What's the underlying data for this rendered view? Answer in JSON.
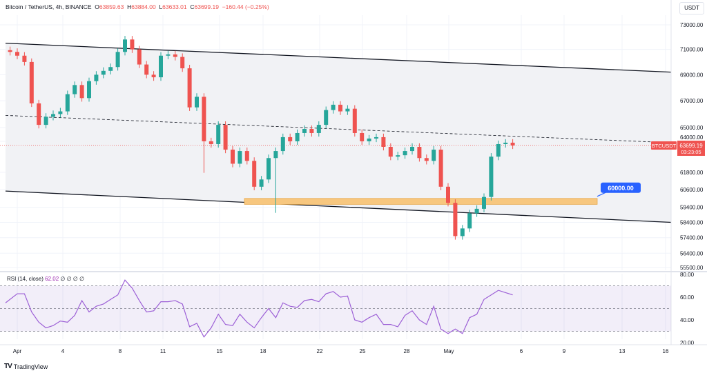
{
  "header": {
    "symbol": "Bitcoin / TetherUS, 4h, BINANCE",
    "open_label": "O",
    "open": "63859.63",
    "high_label": "H",
    "high": "63884.00",
    "low_label": "L",
    "low": "63633.01",
    "close_label": "C",
    "close": "63699.19",
    "change": "−160.44 (−0.25%)"
  },
  "currency_button": "USDT",
  "colors": {
    "up": "#26a69a",
    "down": "#ef5350",
    "rsi": "#9c5fd6",
    "zone": "#f7c77f",
    "callout": "#2962ff",
    "channel": "#f1f2f5"
  },
  "price_axis": {
    "scale": "log",
    "ticks": [
      "73000.00",
      "71000.00",
      "69000.00",
      "67000.00",
      "65000.00",
      "64000.00",
      "61800.00",
      "60600.00",
      "59400.00",
      "58400.00",
      "57400.00",
      "56400.00",
      "55500.00"
    ]
  },
  "last_price": {
    "symbol": "BTCUSDT",
    "price": "63699.19",
    "countdown": "03:23:05"
  },
  "annotations": {
    "support_zone": "59600-60000",
    "callout_label": "60000.00"
  },
  "time_axis": {
    "ticks": [
      "Apr",
      "4",
      "8",
      "11",
      "15",
      "18",
      "22",
      "25",
      "28",
      "May",
      "6",
      "9",
      "13",
      "16"
    ]
  },
  "chart_data": {
    "type": "candlestick",
    "interval": "12h samples of 4h chart",
    "closes": [
      [
        "Mar 31 12:00",
        70800
      ],
      [
        "Apr 1 00:00",
        70500
      ],
      [
        "Apr 1 12:00",
        70000
      ],
      [
        "Apr 2 00:00",
        66800
      ],
      [
        "Apr 2 12:00",
        65200
      ],
      [
        "Apr 3 00:00",
        65800
      ],
      [
        "Apr 3 12:00",
        66000
      ],
      [
        "Apr 4 00:00",
        66200
      ],
      [
        "Apr 4 12:00",
        67500
      ],
      [
        "Apr 5 00:00",
        68200
      ],
      [
        "Apr 5 12:00",
        67200
      ],
      [
        "Apr 6 00:00",
        68500
      ],
      [
        "Apr 6 12:00",
        69000
      ],
      [
        "Apr 7 00:00",
        69300
      ],
      [
        "Apr 7 12:00",
        69600
      ],
      [
        "Apr 8 00:00",
        70800
      ],
      [
        "Apr 8 12:00",
        71800
      ],
      [
        "Apr 9 00:00",
        71000
      ],
      [
        "Apr 9 12:00",
        69800
      ],
      [
        "Apr 10 00:00",
        69000
      ],
      [
        "Apr 10 12:00",
        68800
      ],
      [
        "Apr 11 00:00",
        70500
      ],
      [
        "Apr 11 12:00",
        70600
      ],
      [
        "Apr 12 00:00",
        70400
      ],
      [
        "Apr 12 12:00",
        69500
      ],
      [
        "Apr 13 00:00",
        66500
      ],
      [
        "Apr 13 12:00",
        67300
      ],
      [
        "Apr 14 00:00",
        64000
      ],
      [
        "Apr 14 12:00",
        63800
      ],
      [
        "Apr 15 00:00",
        65200
      ],
      [
        "Apr 15 12:00",
        63400
      ],
      [
        "Apr 16 00:00",
        62400
      ],
      [
        "Apr 16 12:00",
        63300
      ],
      [
        "Apr 17 00:00",
        62600
      ],
      [
        "Apr 17 12:00",
        60800
      ],
      [
        "Apr 18 00:00",
        61300
      ],
      [
        "Apr 18 12:00",
        62800
      ],
      [
        "Apr 19 00:00",
        63300
      ],
      [
        "Apr 19 12:00",
        64300
      ],
      [
        "Apr 20 00:00",
        64000
      ],
      [
        "Apr 20 12:00",
        64600
      ],
      [
        "Apr 21 00:00",
        64900
      ],
      [
        "Apr 21 12:00",
        64600
      ],
      [
        "Apr 22 00:00",
        65200
      ],
      [
        "Apr 22 12:00",
        66300
      ],
      [
        "Apr 23 00:00",
        66700
      ],
      [
        "Apr 23 12:00",
        66200
      ],
      [
        "Apr 24 00:00",
        66400
      ],
      [
        "Apr 24 12:00",
        64600
      ],
      [
        "Apr 25 00:00",
        64000
      ],
      [
        "Apr 25 12:00",
        64200
      ],
      [
        "Apr 26 00:00",
        64300
      ],
      [
        "Apr 26 12:00",
        63600
      ],
      [
        "Apr 27 00:00",
        62900
      ],
      [
        "Apr 27 12:00",
        63000
      ],
      [
        "Apr 28 00:00",
        63300
      ],
      [
        "Apr 28 12:00",
        63600
      ],
      [
        "Apr 29 00:00",
        62800
      ],
      [
        "Apr 29 12:00",
        62600
      ],
      [
        "Apr 30 00:00",
        63400
      ],
      [
        "Apr 30 12:00",
        60800
      ],
      [
        "May 1 00:00",
        59700
      ],
      [
        "May 1 12:00",
        57500
      ],
      [
        "May 2 00:00",
        58000
      ],
      [
        "May 2 12:00",
        59000
      ],
      [
        "May 3 00:00",
        59300
      ],
      [
        "May 3 12:00",
        60100
      ],
      [
        "May 4 00:00",
        62900
      ],
      [
        "May 4 12:00",
        63800
      ],
      [
        "May 5 00:00",
        63900
      ],
      [
        "May 5 12:00",
        63700
      ]
    ],
    "channel": {
      "upper": [
        71500,
        69200
      ],
      "lower": [
        60500,
        58400
      ],
      "mid": [
        65900,
        63900
      ]
    }
  },
  "rsi": {
    "label": "RSI (14, close)",
    "value": "62.02",
    "extra": "∅ ∅ ∅ ∅",
    "ticks": [
      "80.00",
      "60.00",
      "40.00",
      "20.00"
    ],
    "bands": [
      70,
      50,
      30
    ],
    "values": [
      55,
      63,
      63,
      47,
      38,
      33,
      35,
      39,
      38,
      44,
      57,
      47,
      52,
      54,
      58,
      62,
      75,
      68,
      57,
      47,
      48,
      56,
      56,
      57,
      54,
      34,
      37,
      25,
      33,
      45,
      36,
      35,
      45,
      38,
      33,
      42,
      50,
      42,
      55,
      52,
      51,
      57,
      58,
      56,
      63,
      65,
      60,
      61,
      40,
      38,
      42,
      45,
      36,
      36,
      34,
      44,
      48,
      40,
      36,
      52,
      32,
      28,
      32,
      28,
      42,
      45,
      58,
      62,
      66,
      64,
      62
    ]
  },
  "branding": {
    "logo": "TV",
    "name": "TradingView"
  }
}
